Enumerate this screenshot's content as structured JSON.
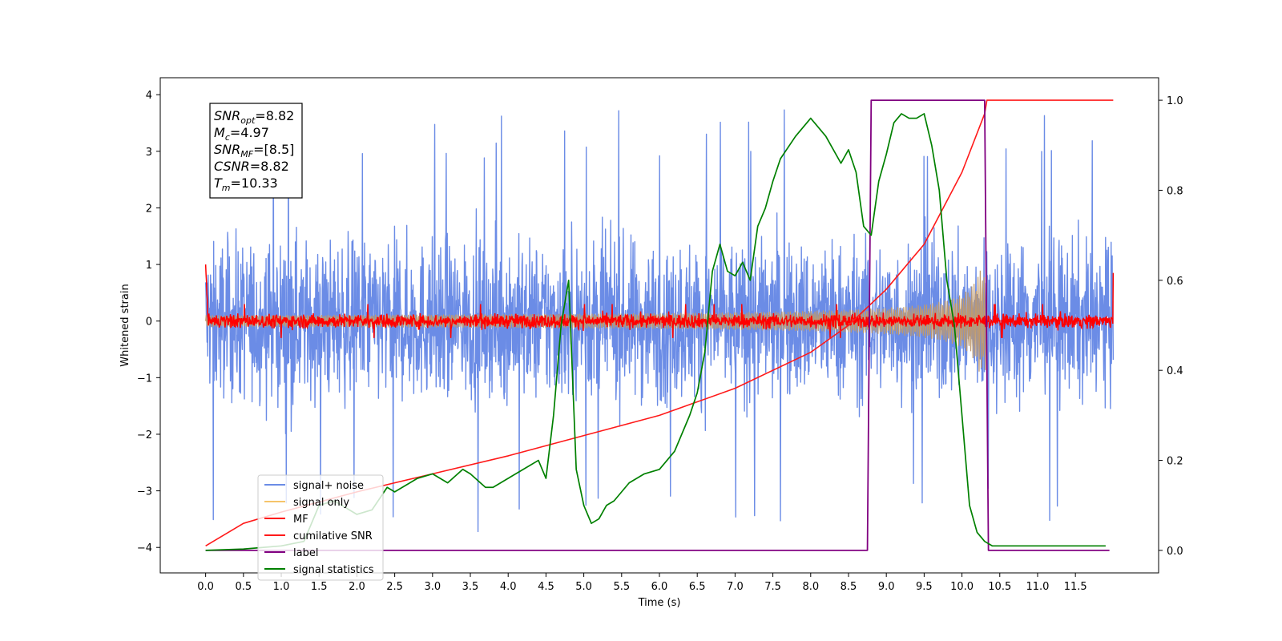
{
  "chart_data": {
    "type": "line",
    "xlabel": "Time (s)",
    "ylabel": "Whitened strain",
    "xlim": [
      -0.6,
      12.6
    ],
    "ylim_left": [
      -4.45,
      4.3
    ],
    "ylim_right": [
      -0.05,
      1.05
    ],
    "x_ticks": [
      "0.0",
      "0.5",
      "1.0",
      "1.5",
      "2.0",
      "2.5",
      "3.0",
      "3.5",
      "4.0",
      "4.5",
      "5.0",
      "5.5",
      "6.0",
      "6.5",
      "7.0",
      "7.5",
      "8.0",
      "8.5",
      "9.0",
      "9.5",
      "10.0",
      "10.5",
      "11.0",
      "11.5"
    ],
    "y_ticks_left": [
      "4",
      "3",
      "2",
      "1",
      "0",
      "−1",
      "−2",
      "−3",
      "−4"
    ],
    "y_ticks_right": [
      "1.0",
      "0.8",
      "0.6",
      "0.4",
      "0.2",
      "0.0"
    ],
    "grid": false,
    "legend_position": "lower-left",
    "colors": {
      "signal_noise": "#6b8ce6",
      "signal_only": "#f5c46a",
      "signal_overlap": "#bf9a6e",
      "mf": "#ff0000",
      "cumulative_snr": "#ff1a1a",
      "label": "#800080",
      "signal_statistics": "#008000"
    },
    "annotation": [
      {
        "base": "SNR",
        "sub": "opt",
        "value": "=8.82"
      },
      {
        "base": "M",
        "sub": "c",
        "value": "=4.97"
      },
      {
        "base": "SNR",
        "sub": "MF",
        "value": "=[8.5]"
      },
      {
        "base": "CSNR",
        "sub": "",
        "value": "=8.82"
      },
      {
        "base": "T",
        "sub": "m",
        "value": "=10.33"
      }
    ],
    "series": [
      {
        "name": "signal+ noise",
        "axis": "left",
        "style": "noise",
        "x_range": [
          0.0,
          12.0
        ],
        "typical_range": [
          -2.2,
          2.2
        ],
        "peak_max": 3.93,
        "peak_min": -3.93
      },
      {
        "name": "signal only",
        "axis": "left",
        "style": "chirp",
        "x_range": [
          0.0,
          10.33
        ],
        "amplitude_end": 0.9
      },
      {
        "name": "MF",
        "axis": "left",
        "style": "noise",
        "x_range": [
          0.0,
          12.0
        ],
        "typical_range": [
          -0.2,
          0.2
        ],
        "start_value": 1.0,
        "end_value": 0.85
      },
      {
        "name": "cumilative SNR",
        "axis": "right",
        "x": [
          0.0,
          0.5,
          1.0,
          2.0,
          3.0,
          4.0,
          5.0,
          6.0,
          7.0,
          8.0,
          8.5,
          9.0,
          9.5,
          10.0,
          10.3,
          10.33,
          12.0
        ],
        "y": [
          0.01,
          0.06,
          0.085,
          0.13,
          0.17,
          0.21,
          0.255,
          0.3,
          0.36,
          0.44,
          0.5,
          0.58,
          0.68,
          0.84,
          0.97,
          1.0,
          1.0
        ]
      },
      {
        "name": "label",
        "axis": "right",
        "x": [
          0.0,
          8.75,
          8.8,
          10.3,
          10.35,
          11.95
        ],
        "y": [
          0.0,
          0.0,
          1.0,
          1.0,
          0.0,
          0.0
        ]
      },
      {
        "name": "signal statistics",
        "axis": "right",
        "x": [
          0.0,
          0.5,
          1.0,
          1.3,
          1.5,
          1.7,
          2.0,
          2.2,
          2.4,
          2.5,
          2.8,
          3.0,
          3.2,
          3.4,
          3.5,
          3.7,
          3.8,
          4.0,
          4.2,
          4.4,
          4.5,
          4.6,
          4.7,
          4.8,
          4.9,
          5.0,
          5.1,
          5.2,
          5.3,
          5.4,
          5.5,
          5.6,
          5.8,
          6.0,
          6.2,
          6.4,
          6.5,
          6.6,
          6.7,
          6.8,
          6.9,
          7.0,
          7.1,
          7.2,
          7.3,
          7.4,
          7.5,
          7.6,
          7.8,
          8.0,
          8.2,
          8.4,
          8.5,
          8.6,
          8.7,
          8.8,
          8.9,
          9.0,
          9.1,
          9.2,
          9.3,
          9.4,
          9.5,
          9.6,
          9.7,
          9.8,
          9.9,
          10.0,
          10.1,
          10.2,
          10.3,
          10.4,
          10.5,
          11.0,
          11.5,
          11.9
        ],
        "y": [
          0.0,
          0.003,
          0.01,
          0.02,
          0.1,
          0.11,
          0.08,
          0.09,
          0.14,
          0.13,
          0.16,
          0.17,
          0.15,
          0.18,
          0.17,
          0.14,
          0.14,
          0.16,
          0.18,
          0.2,
          0.16,
          0.3,
          0.5,
          0.6,
          0.18,
          0.1,
          0.06,
          0.07,
          0.1,
          0.11,
          0.13,
          0.15,
          0.17,
          0.18,
          0.22,
          0.3,
          0.35,
          0.44,
          0.62,
          0.68,
          0.62,
          0.61,
          0.64,
          0.6,
          0.72,
          0.76,
          0.82,
          0.87,
          0.92,
          0.96,
          0.92,
          0.86,
          0.89,
          0.84,
          0.72,
          0.7,
          0.82,
          0.88,
          0.95,
          0.97,
          0.96,
          0.96,
          0.97,
          0.9,
          0.8,
          0.6,
          0.5,
          0.3,
          0.1,
          0.04,
          0.02,
          0.01,
          0.01,
          0.01,
          0.01,
          0.01
        ]
      }
    ]
  }
}
